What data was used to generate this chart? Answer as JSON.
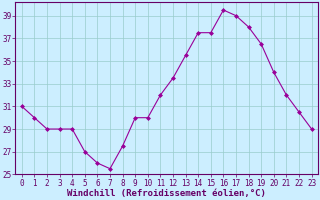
{
  "x": [
    0,
    1,
    2,
    3,
    4,
    5,
    6,
    7,
    8,
    9,
    10,
    11,
    12,
    13,
    14,
    15,
    16,
    17,
    18,
    19,
    20,
    21,
    22,
    23
  ],
  "y": [
    31,
    30,
    29,
    29,
    29,
    27,
    26,
    25.5,
    27.5,
    30,
    30,
    32,
    33.5,
    35.5,
    37.5,
    37.5,
    39.5,
    39,
    38,
    36.5,
    34,
    32,
    30.5,
    29
  ],
  "line_color": "#990099",
  "marker": "D",
  "marker_size": 2,
  "xlabel": "Windchill (Refroidissement éolien,°C)",
  "xlabel_fontsize": 6.5,
  "xlabel_color": "#660066",
  "bg_color": "#cceeff",
  "grid_color": "#99cccc",
  "axis_color": "#660066",
  "tick_color": "#660066",
  "ylim": [
    25,
    40
  ],
  "xlim_min": -0.5,
  "xlim_max": 23.5,
  "yticks": [
    25,
    27,
    29,
    31,
    33,
    35,
    37,
    39
  ],
  "xticks": [
    0,
    1,
    2,
    3,
    4,
    5,
    6,
    7,
    8,
    9,
    10,
    11,
    12,
    13,
    14,
    15,
    16,
    17,
    18,
    19,
    20,
    21,
    22,
    23
  ],
  "xtick_labels": [
    "0",
    "1",
    "2",
    "3",
    "4",
    "5",
    "6",
    "7",
    "8",
    "9",
    "10",
    "11",
    "12",
    "13",
    "14",
    "15",
    "16",
    "17",
    "18",
    "19",
    "20",
    "21",
    "22",
    "23"
  ],
  "ytick_labels": [
    "25",
    "27",
    "29",
    "31",
    "33",
    "35",
    "37",
    "39"
  ],
  "tick_fontsize": 5.5,
  "linewidth": 0.8
}
